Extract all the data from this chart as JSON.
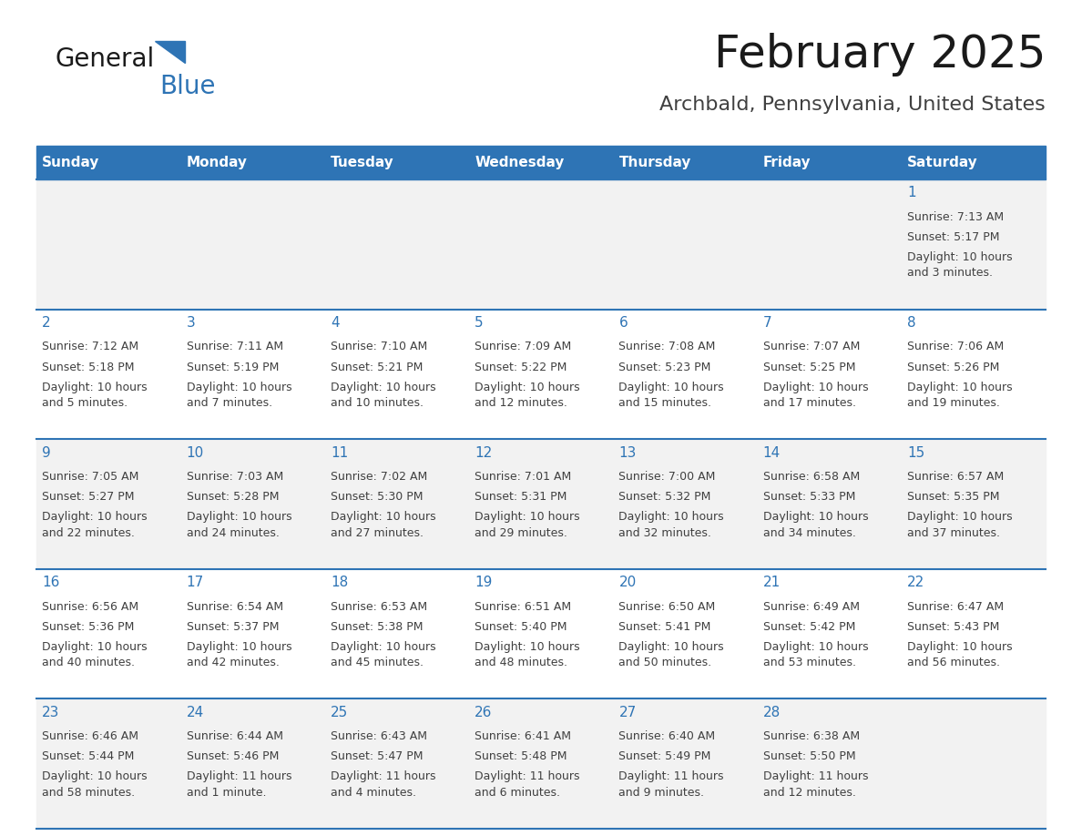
{
  "title": "February 2025",
  "subtitle": "Archbald, Pennsylvania, United States",
  "header_bg_color": "#2e74b5",
  "header_text_color": "#ffffff",
  "cell_bg_even": "#f2f2f2",
  "cell_bg_odd": "#ffffff",
  "day_num_color": "#2e74b5",
  "text_color": "#404040",
  "border_color": "#2e74b5",
  "days_of_week": [
    "Sunday",
    "Monday",
    "Tuesday",
    "Wednesday",
    "Thursday",
    "Friday",
    "Saturday"
  ],
  "weeks": [
    [
      {
        "day": null,
        "sunrise": null,
        "sunset": null,
        "daylight": null
      },
      {
        "day": null,
        "sunrise": null,
        "sunset": null,
        "daylight": null
      },
      {
        "day": null,
        "sunrise": null,
        "sunset": null,
        "daylight": null
      },
      {
        "day": null,
        "sunrise": null,
        "sunset": null,
        "daylight": null
      },
      {
        "day": null,
        "sunrise": null,
        "sunset": null,
        "daylight": null
      },
      {
        "day": null,
        "sunrise": null,
        "sunset": null,
        "daylight": null
      },
      {
        "day": 1,
        "sunrise": "7:13 AM",
        "sunset": "5:17 PM",
        "daylight": "10 hours\nand 3 minutes."
      }
    ],
    [
      {
        "day": 2,
        "sunrise": "7:12 AM",
        "sunset": "5:18 PM",
        "daylight": "10 hours\nand 5 minutes."
      },
      {
        "day": 3,
        "sunrise": "7:11 AM",
        "sunset": "5:19 PM",
        "daylight": "10 hours\nand 7 minutes."
      },
      {
        "day": 4,
        "sunrise": "7:10 AM",
        "sunset": "5:21 PM",
        "daylight": "10 hours\nand 10 minutes."
      },
      {
        "day": 5,
        "sunrise": "7:09 AM",
        "sunset": "5:22 PM",
        "daylight": "10 hours\nand 12 minutes."
      },
      {
        "day": 6,
        "sunrise": "7:08 AM",
        "sunset": "5:23 PM",
        "daylight": "10 hours\nand 15 minutes."
      },
      {
        "day": 7,
        "sunrise": "7:07 AM",
        "sunset": "5:25 PM",
        "daylight": "10 hours\nand 17 minutes."
      },
      {
        "day": 8,
        "sunrise": "7:06 AM",
        "sunset": "5:26 PM",
        "daylight": "10 hours\nand 19 minutes."
      }
    ],
    [
      {
        "day": 9,
        "sunrise": "7:05 AM",
        "sunset": "5:27 PM",
        "daylight": "10 hours\nand 22 minutes."
      },
      {
        "day": 10,
        "sunrise": "7:03 AM",
        "sunset": "5:28 PM",
        "daylight": "10 hours\nand 24 minutes."
      },
      {
        "day": 11,
        "sunrise": "7:02 AM",
        "sunset": "5:30 PM",
        "daylight": "10 hours\nand 27 minutes."
      },
      {
        "day": 12,
        "sunrise": "7:01 AM",
        "sunset": "5:31 PM",
        "daylight": "10 hours\nand 29 minutes."
      },
      {
        "day": 13,
        "sunrise": "7:00 AM",
        "sunset": "5:32 PM",
        "daylight": "10 hours\nand 32 minutes."
      },
      {
        "day": 14,
        "sunrise": "6:58 AM",
        "sunset": "5:33 PM",
        "daylight": "10 hours\nand 34 minutes."
      },
      {
        "day": 15,
        "sunrise": "6:57 AM",
        "sunset": "5:35 PM",
        "daylight": "10 hours\nand 37 minutes."
      }
    ],
    [
      {
        "day": 16,
        "sunrise": "6:56 AM",
        "sunset": "5:36 PM",
        "daylight": "10 hours\nand 40 minutes."
      },
      {
        "day": 17,
        "sunrise": "6:54 AM",
        "sunset": "5:37 PM",
        "daylight": "10 hours\nand 42 minutes."
      },
      {
        "day": 18,
        "sunrise": "6:53 AM",
        "sunset": "5:38 PM",
        "daylight": "10 hours\nand 45 minutes."
      },
      {
        "day": 19,
        "sunrise": "6:51 AM",
        "sunset": "5:40 PM",
        "daylight": "10 hours\nand 48 minutes."
      },
      {
        "day": 20,
        "sunrise": "6:50 AM",
        "sunset": "5:41 PM",
        "daylight": "10 hours\nand 50 minutes."
      },
      {
        "day": 21,
        "sunrise": "6:49 AM",
        "sunset": "5:42 PM",
        "daylight": "10 hours\nand 53 minutes."
      },
      {
        "day": 22,
        "sunrise": "6:47 AM",
        "sunset": "5:43 PM",
        "daylight": "10 hours\nand 56 minutes."
      }
    ],
    [
      {
        "day": 23,
        "sunrise": "6:46 AM",
        "sunset": "5:44 PM",
        "daylight": "10 hours\nand 58 minutes."
      },
      {
        "day": 24,
        "sunrise": "6:44 AM",
        "sunset": "5:46 PM",
        "daylight": "11 hours\nand 1 minute."
      },
      {
        "day": 25,
        "sunrise": "6:43 AM",
        "sunset": "5:47 PM",
        "daylight": "11 hours\nand 4 minutes."
      },
      {
        "day": 26,
        "sunrise": "6:41 AM",
        "sunset": "5:48 PM",
        "daylight": "11 hours\nand 6 minutes."
      },
      {
        "day": 27,
        "sunrise": "6:40 AM",
        "sunset": "5:49 PM",
        "daylight": "11 hours\nand 9 minutes."
      },
      {
        "day": 28,
        "sunrise": "6:38 AM",
        "sunset": "5:50 PM",
        "daylight": "11 hours\nand 12 minutes."
      },
      {
        "day": null,
        "sunrise": null,
        "sunset": null,
        "daylight": null
      }
    ]
  ],
  "logo_text_general": "General",
  "logo_text_blue": "Blue",
  "fig_width": 11.88,
  "fig_height": 9.18
}
